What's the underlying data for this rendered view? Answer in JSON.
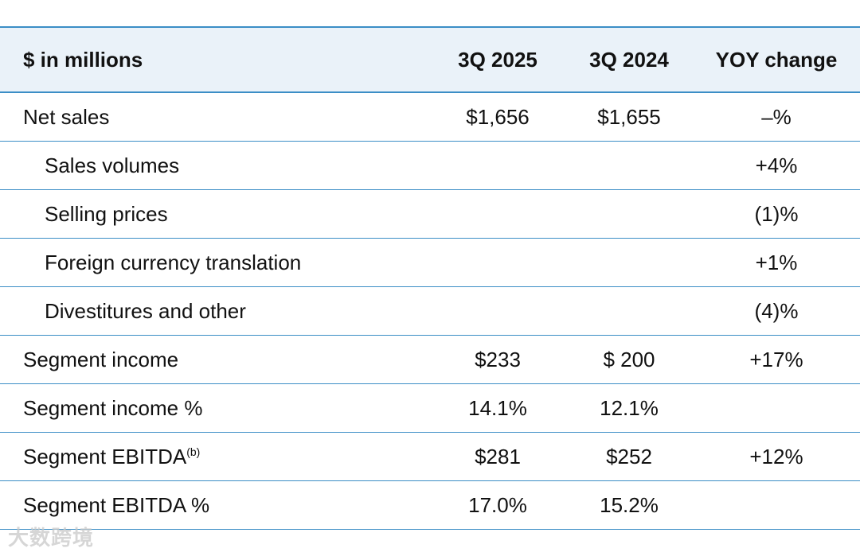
{
  "header": {
    "label": "$ in millions",
    "col1": "3Q 2025",
    "col2": "3Q 2024",
    "col3": "YOY change"
  },
  "rows": [
    {
      "label": "Net sales",
      "sup": "",
      "q2025": "$1,656",
      "q2024": "$1,655",
      "yoy": "–%",
      "indent": false
    },
    {
      "label": "Sales volumes",
      "sup": "",
      "q2025": "",
      "q2024": "",
      "yoy": "+4%",
      "indent": true
    },
    {
      "label": "Selling prices",
      "sup": "",
      "q2025": "",
      "q2024": "",
      "yoy": "(1)%",
      "indent": true
    },
    {
      "label": "Foreign currency translation",
      "sup": "",
      "q2025": "",
      "q2024": "",
      "yoy": "+1%",
      "indent": true
    },
    {
      "label": "Divestitures and other",
      "sup": "",
      "q2025": "",
      "q2024": "",
      "yoy": "(4)%",
      "indent": true
    },
    {
      "label": "Segment income",
      "sup": "",
      "q2025": "$233",
      "q2024": "$ 200",
      "yoy": "+17%",
      "indent": false
    },
    {
      "label": "Segment income %",
      "sup": "",
      "q2025": "14.1%",
      "q2024": "12.1%",
      "yoy": "",
      "indent": false
    },
    {
      "label": "Segment EBITDA",
      "sup": "(b)",
      "q2025": "$281",
      "q2024": "$252",
      "yoy": "+12%",
      "indent": false
    },
    {
      "label": "Segment EBITDA %",
      "sup": "",
      "q2025": "17.0%",
      "q2024": "15.2%",
      "yoy": "",
      "indent": false
    }
  ],
  "watermark": "大数跨境",
  "colors": {
    "rule": "#3b8ec6",
    "header_bg": "#eaf2f9"
  }
}
